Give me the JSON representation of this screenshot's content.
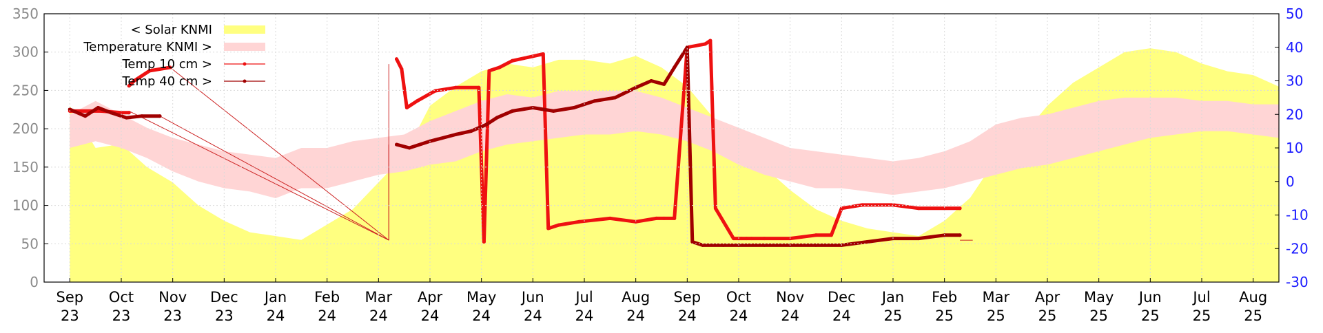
{
  "chart_data": {
    "type": "area",
    "title": "",
    "xlabel": "",
    "ylabel": "",
    "y_left": {
      "min": 0,
      "max": 350,
      "ticks": [
        0,
        50,
        100,
        150,
        200,
        250,
        300,
        350
      ]
    },
    "y_right": {
      "min": -30,
      "max": 50,
      "ticks": [
        -30,
        -20,
        -10,
        0,
        10,
        20,
        30,
        40,
        50
      ]
    },
    "x_ticks": [
      {
        "month": "Sep",
        "year": "23"
      },
      {
        "month": "Oct",
        "year": "23"
      },
      {
        "month": "Nov",
        "year": "23"
      },
      {
        "month": "Dec",
        "year": "23"
      },
      {
        "month": "Jan",
        "year": "24"
      },
      {
        "month": "Feb",
        "year": "24"
      },
      {
        "month": "Mar",
        "year": "24"
      },
      {
        "month": "Apr",
        "year": "24"
      },
      {
        "month": "May",
        "year": "24"
      },
      {
        "month": "Jun",
        "year": "24"
      },
      {
        "month": "Jul",
        "year": "24"
      },
      {
        "month": "Aug",
        "year": "24"
      },
      {
        "month": "Sep",
        "year": "24"
      },
      {
        "month": "Oct",
        "year": "24"
      },
      {
        "month": "Nov",
        "year": "24"
      },
      {
        "month": "Dec",
        "year": "24"
      },
      {
        "month": "Jan",
        "year": "25"
      },
      {
        "month": "Feb",
        "year": "25"
      },
      {
        "month": "Mar",
        "year": "25"
      },
      {
        "month": "Apr",
        "year": "25"
      },
      {
        "month": "May",
        "year": "25"
      },
      {
        "month": "Jun",
        "year": "25"
      },
      {
        "month": "Jul",
        "year": "25"
      },
      {
        "month": "Aug",
        "year": "25"
      }
    ],
    "grid": true,
    "legend_position": "top-left",
    "series": [
      {
        "name": "< Solar KNMI",
        "axis": "left",
        "style": "area",
        "color": "#ffff80",
        "months": [
          0,
          0.5,
          1,
          1.5,
          2,
          2.5,
          3,
          3.5,
          4,
          4.5,
          5,
          5.5,
          6,
          6.5,
          7,
          7.5,
          8,
          8.5,
          9,
          9.5,
          10,
          10.5,
          11,
          11.5,
          12,
          12.5,
          13,
          13.5,
          14,
          14.5,
          15,
          15.5,
          16,
          16.5,
          17,
          17.5,
          18,
          18.5,
          19,
          19.5,
          20,
          20.5,
          21,
          21.5,
          22,
          22.5,
          23,
          23.5,
          24
        ],
        "values": [
          230,
          175,
          180,
          150,
          130,
          100,
          80,
          65,
          60,
          55,
          75,
          95,
          130,
          165,
          230,
          255,
          275,
          285,
          280,
          290,
          290,
          285,
          295,
          280,
          255,
          215,
          190,
          150,
          120,
          95,
          80,
          70,
          65,
          60,
          80,
          110,
          160,
          190,
          230,
          260,
          280,
          300,
          305,
          300,
          285,
          275,
          270,
          255,
          240
        ]
      },
      {
        "name": "Temperature KNMI >",
        "axis": "right",
        "style": "band",
        "color": "#ffd5d5",
        "months": [
          0,
          0.5,
          1,
          1.5,
          2,
          2.5,
          3,
          3.5,
          4,
          4.5,
          5,
          5.5,
          6,
          6.5,
          7,
          7.5,
          8,
          8.5,
          9,
          9.5,
          10,
          10.5,
          11,
          11.5,
          12,
          12.5,
          13,
          13.5,
          14,
          14.5,
          15,
          15.5,
          16,
          16.5,
          17,
          17.5,
          18,
          18.5,
          19,
          19.5,
          20,
          20.5,
          21,
          21.5,
          22,
          22.5,
          23,
          23.5,
          24
        ],
        "low": [
          10,
          12,
          10,
          7,
          3,
          0,
          -2,
          -3,
          -5,
          -2,
          -2,
          0,
          2,
          3,
          5,
          6,
          9,
          11,
          12,
          13,
          14,
          14,
          15,
          14,
          12,
          9,
          5,
          2,
          0,
          -2,
          -2,
          -3,
          -4,
          -3,
          -2,
          0,
          2,
          4,
          5,
          7,
          9,
          11,
          13,
          14,
          15,
          15,
          14,
          13,
          12
        ],
        "high": [
          20,
          24,
          20,
          16,
          13,
          11,
          9,
          8,
          7,
          10,
          10,
          12,
          13,
          14,
          18,
          21,
          24,
          26,
          25,
          27,
          27,
          27,
          27,
          25,
          22,
          19,
          16,
          13,
          10,
          9,
          8,
          7,
          6,
          7,
          9,
          12,
          17,
          19,
          20,
          22,
          24,
          25,
          25,
          25,
          24,
          24,
          23,
          23,
          21
        ]
      },
      {
        "name": "Temp 10 cm >",
        "axis": "right",
        "style": "line-points",
        "color": "#ee1111",
        "segments": [
          {
            "months": [
              0,
              0.6,
              1.0,
              1.15
            ],
            "values": [
              21,
              21,
              20.5,
              20.5
            ]
          },
          {
            "months": [
              1.15,
              1.25,
              1.55,
              1.95
            ],
            "values": [
              28.5,
              30,
              33,
              34
            ]
          },
          {
            "months": [
              6.35,
              6.45,
              6.55,
              6.75,
              7.1,
              7.5,
              7.95,
              8.05,
              8.15,
              8.35,
              8.6,
              8.9,
              9.2,
              9.3,
              9.5,
              9.9,
              10.5,
              11.0,
              11.4,
              11.55,
              11.75,
              12.0,
              12.35,
              12.45,
              12.55,
              12.9,
              13.0,
              13.05,
              13.15,
              13.25,
              13.5,
              14.0,
              14.5,
              14.8,
              15.0,
              15.4,
              16.0,
              16.5,
              17.0,
              17.3
            ],
            "values": [
              36.5,
              33.5,
              22,
              24,
              27,
              28,
              28,
              -18,
              33,
              34,
              36,
              37,
              38,
              -14,
              -13,
              -12,
              -11,
              -12,
              -11,
              -11,
              -11,
              40,
              41,
              42,
              -8,
              -17,
              -17,
              -17,
              -17,
              -17,
              -17,
              -17,
              -16,
              -16,
              -8,
              -7,
              -7,
              -8,
              -8,
              -8
            ]
          }
        ]
      },
      {
        "name": "Temp 40 cm >",
        "axis": "right",
        "style": "line-points",
        "color": "#a00000",
        "segments": [
          {
            "months": [
              0,
              0.3,
              0.55,
              0.8,
              1.1,
              1.4,
              1.75
            ],
            "values": [
              21.5,
              19.5,
              22,
              20.5,
              19,
              19.5,
              19.5
            ]
          },
          {
            "months": [
              6.35,
              6.6,
              7.0,
              7.5,
              7.8,
              7.95,
              8.1,
              8.3,
              8.6,
              9.0,
              9.4,
              9.8,
              10.2,
              10.6,
              11.0,
              11.3,
              11.55,
              11.75,
              12.0,
              12.1,
              12.3,
              12.7,
              13.0,
              13.5,
              14.0,
              14.5,
              15.0,
              15.5,
              16.0,
              16.5,
              17.0,
              17.3
            ],
            "values": [
              11,
              10,
              12,
              14,
              15,
              16,
              17,
              19,
              21,
              22,
              21,
              22,
              24,
              25,
              28,
              30,
              29,
              34,
              40,
              -18,
              -19,
              -19,
              -19,
              -19,
              -19,
              -19,
              -19,
              -18,
              -17,
              -17,
              -16,
              -16
            ]
          }
        ]
      }
    ],
    "gap_lines": {
      "color": "#cc2222",
      "lines": [
        {
          "from": [
            1.15,
            21
          ],
          "to": [
            6.2,
            -17.5
          ]
        },
        {
          "from": [
            1.95,
            34
          ],
          "to": [
            6.2,
            -17.5
          ]
        },
        {
          "from": [
            1.75,
            19.5
          ],
          "to": [
            6.2,
            -17.5
          ]
        },
        {
          "from": [
            6.2,
            -17.5
          ],
          "to": [
            6.2,
            35
          ]
        },
        {
          "from": [
            6.2,
            -17.5
          ],
          "to": [
            6.2,
            11
          ]
        },
        {
          "from": [
            17.3,
            -17.5
          ],
          "to": [
            17.55,
            -17.5
          ]
        }
      ]
    }
  }
}
